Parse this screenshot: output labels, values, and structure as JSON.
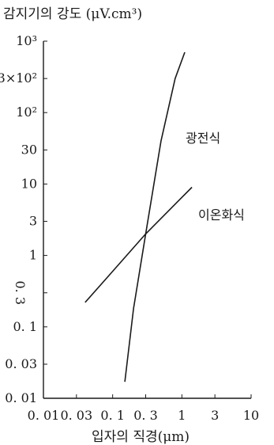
{
  "chart_data": {
    "type": "line",
    "title": "감지기의 강도 (μV.cm³)",
    "xlabel": "입자의 직경(μm)",
    "ylabel": "",
    "x_scale": "log",
    "y_scale": "log",
    "xlim": [
      0.01,
      10
    ],
    "ylim": [
      0.01,
      1000
    ],
    "x_ticks": [
      {
        "value": 0.01,
        "label": "0. 01"
      },
      {
        "value": 0.03,
        "label": "0. 03"
      },
      {
        "value": 0.1,
        "label": "0. 1"
      },
      {
        "value": 0.3,
        "label": "0. 3"
      },
      {
        "value": 1,
        "label": "1"
      },
      {
        "value": 3,
        "label": "3"
      },
      {
        "value": 10,
        "label": "10"
      }
    ],
    "y_ticks": [
      {
        "value": 1000,
        "label": "10³"
      },
      {
        "value": 300,
        "label": "3×10²"
      },
      {
        "value": 100,
        "label": "10²"
      },
      {
        "value": 30,
        "label": "30"
      },
      {
        "value": 10,
        "label": "10"
      },
      {
        "value": 3,
        "label": "3"
      },
      {
        "value": 1,
        "label": "1"
      },
      {
        "value": 0.3,
        "label": "0. 3"
      },
      {
        "value": 0.1,
        "label": "0. 1"
      },
      {
        "value": 0.03,
        "label": "0. 03"
      },
      {
        "value": 0.01,
        "label": "0. 01"
      }
    ],
    "grid": false,
    "series": [
      {
        "name": "광전식",
        "x": [
          0.15,
          0.2,
          0.3,
          0.5,
          0.8,
          1.1
        ],
        "y": [
          0.017,
          0.18,
          2.0,
          40,
          300,
          700
        ]
      },
      {
        "name": "이온화식",
        "x": [
          0.04,
          0.1,
          0.3,
          1.0,
          1.4
        ],
        "y": [
          0.22,
          0.6,
          2.0,
          6.5,
          9.0
        ]
      }
    ]
  }
}
